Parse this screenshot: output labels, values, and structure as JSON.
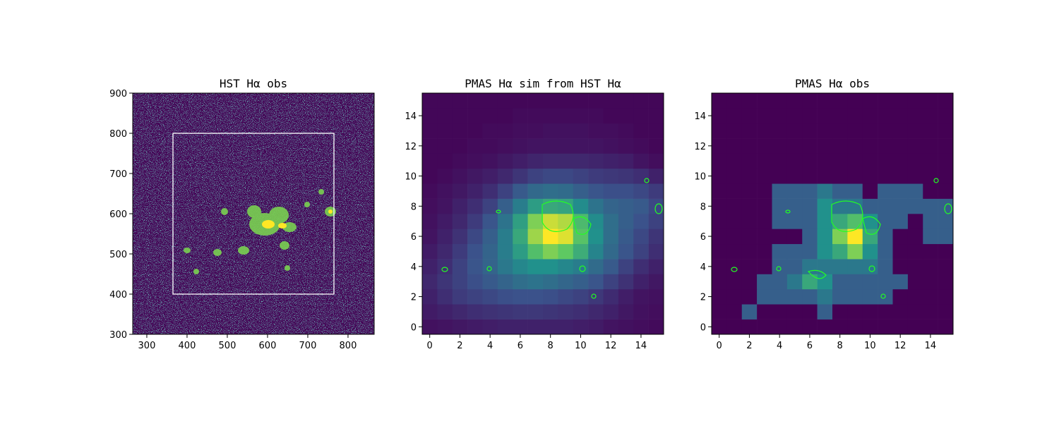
{
  "chart_data": [
    {
      "type": "image",
      "title": "HST Hα obs",
      "colormap": "viridis",
      "xlim": [
        265,
        865
      ],
      "ylim": [
        300,
        900
      ],
      "xticks": [
        300,
        400,
        500,
        600,
        700,
        800
      ],
      "yticks": [
        300,
        400,
        500,
        600,
        700,
        800,
        900
      ],
      "box": {
        "x": [
          365,
          765
        ],
        "y": [
          400,
          800
        ],
        "color": "#ffffff"
      }
    },
    {
      "type": "heatmap",
      "title": "PMAS Hα sim from HST Hα",
      "colormap": "viridis",
      "xlim": [
        -0.5,
        15.5
      ],
      "ylim": [
        -0.5,
        15.5
      ],
      "xticks": [
        0,
        2,
        4,
        6,
        8,
        10,
        12,
        14
      ],
      "yticks": [
        0,
        2,
        4,
        6,
        8,
        10,
        12,
        14
      ],
      "z": [
        [
          0.05,
          0.06,
          0.07,
          0.08,
          0.09,
          0.1,
          0.1,
          0.1,
          0.1,
          0.1,
          0.09,
          0.08,
          0.06,
          0.05,
          0.04,
          0.03
        ],
        [
          0.08,
          0.1,
          0.12,
          0.14,
          0.15,
          0.16,
          0.17,
          0.17,
          0.16,
          0.15,
          0.14,
          0.12,
          0.1,
          0.07,
          0.05,
          0.04
        ],
        [
          0.1,
          0.14,
          0.18,
          0.2,
          0.22,
          0.24,
          0.25,
          0.25,
          0.24,
          0.22,
          0.2,
          0.17,
          0.13,
          0.09,
          0.06,
          0.05
        ],
        [
          0.12,
          0.16,
          0.2,
          0.24,
          0.28,
          0.32,
          0.36,
          0.38,
          0.36,
          0.33,
          0.3,
          0.26,
          0.2,
          0.15,
          0.1,
          0.07
        ],
        [
          0.1,
          0.14,
          0.2,
          0.26,
          0.32,
          0.4,
          0.46,
          0.5,
          0.5,
          0.46,
          0.42,
          0.35,
          0.28,
          0.2,
          0.14,
          0.1
        ],
        [
          0.08,
          0.12,
          0.18,
          0.25,
          0.32,
          0.42,
          0.55,
          0.7,
          0.8,
          0.75,
          0.62,
          0.45,
          0.34,
          0.26,
          0.2,
          0.14
        ],
        [
          0.06,
          0.1,
          0.15,
          0.22,
          0.3,
          0.42,
          0.6,
          0.85,
          1,
          0.95,
          0.72,
          0.5,
          0.36,
          0.28,
          0.22,
          0.16
        ],
        [
          0.05,
          0.08,
          0.12,
          0.18,
          0.26,
          0.38,
          0.56,
          0.8,
          0.92,
          0.88,
          0.68,
          0.48,
          0.36,
          0.3,
          0.25,
          0.2
        ],
        [
          0.04,
          0.06,
          0.1,
          0.14,
          0.2,
          0.3,
          0.42,
          0.55,
          0.6,
          0.58,
          0.48,
          0.38,
          0.32,
          0.3,
          0.28,
          0.22
        ],
        [
          0.03,
          0.05,
          0.07,
          0.1,
          0.14,
          0.2,
          0.28,
          0.34,
          0.36,
          0.35,
          0.3,
          0.26,
          0.24,
          0.24,
          0.22,
          0.18
        ],
        [
          0.02,
          0.03,
          0.05,
          0.07,
          0.09,
          0.12,
          0.16,
          0.2,
          0.22,
          0.22,
          0.2,
          0.18,
          0.17,
          0.16,
          0.14,
          0.1
        ],
        [
          0.02,
          0.02,
          0.03,
          0.04,
          0.05,
          0.07,
          0.09,
          0.11,
          0.12,
          0.12,
          0.12,
          0.11,
          0.1,
          0.09,
          0.06,
          0.04
        ],
        [
          0.02,
          0.02,
          0.02,
          0.03,
          0.03,
          0.04,
          0.05,
          0.06,
          0.06,
          0.06,
          0.06,
          0.06,
          0.05,
          0.04,
          0.03,
          0.02
        ],
        [
          0.02,
          0.02,
          0.02,
          0.02,
          0.03,
          0.03,
          0.04,
          0.04,
          0.05,
          0.05,
          0.05,
          0.04,
          0.04,
          0.03,
          0.02,
          0.02
        ],
        [
          0.02,
          0.02,
          0.02,
          0.02,
          0.02,
          0.02,
          0.03,
          0.03,
          0.03,
          0.03,
          0.03,
          0.03,
          0.02,
          0.02,
          0.02,
          0.02
        ],
        [
          0.02,
          0.02,
          0.02,
          0.02,
          0.02,
          0.02,
          0.02,
          0.02,
          0.02,
          0.02,
          0.02,
          0.02,
          0.02,
          0.02,
          0.02,
          0.02
        ]
      ]
    },
    {
      "type": "heatmap",
      "title": "PMAS Hα obs",
      "colormap": "viridis",
      "xlim": [
        -0.5,
        15.5
      ],
      "ylim": [
        -0.5,
        15.5
      ],
      "xticks": [
        0,
        2,
        4,
        6,
        8,
        10,
        12,
        14
      ],
      "yticks": [
        0,
        2,
        4,
        6,
        8,
        10,
        12,
        14
      ],
      "z": [
        [
          0,
          0,
          0,
          0,
          0,
          0,
          0,
          0,
          0,
          0,
          0,
          0,
          0,
          0,
          0,
          0
        ],
        [
          0,
          0,
          0.3,
          0,
          0,
          0,
          0,
          0.3,
          0,
          0,
          0,
          0,
          0,
          0,
          0,
          0
        ],
        [
          0,
          0,
          0,
          0.3,
          0.3,
          0.3,
          0.3,
          0.4,
          0.3,
          0.3,
          0.3,
          0.3,
          0,
          0,
          0,
          0
        ],
        [
          0,
          0,
          0,
          0.3,
          0.3,
          0.4,
          0.6,
          0.5,
          0.3,
          0.3,
          0.3,
          0.3,
          0.3,
          0,
          0,
          0
        ],
        [
          0,
          0,
          0,
          0,
          0.3,
          0.3,
          0.4,
          0.4,
          0.4,
          0.4,
          0.4,
          0.3,
          0,
          0,
          0,
          0
        ],
        [
          0,
          0,
          0,
          0,
          0.3,
          0.3,
          0.3,
          0.5,
          0.6,
          0.8,
          0.5,
          0.3,
          0,
          0,
          0,
          0
        ],
        [
          0,
          0,
          0,
          0,
          0,
          0,
          0.3,
          0.5,
          0.8,
          1,
          0.6,
          0.3,
          0,
          0,
          0.3,
          0.3
        ],
        [
          0,
          0,
          0,
          0,
          0.3,
          0.3,
          0.3,
          0.5,
          0.6,
          0.7,
          0.5,
          0.3,
          0.3,
          0,
          0.3,
          0.3
        ],
        [
          0,
          0,
          0,
          0,
          0.3,
          0.3,
          0.3,
          0.5,
          0.4,
          0.4,
          0.3,
          0.3,
          0.3,
          0.3,
          0.3,
          0.3
        ],
        [
          0,
          0,
          0,
          0,
          0.3,
          0.3,
          0.3,
          0.4,
          0.3,
          0.3,
          0,
          0.3,
          0.3,
          0.3,
          0,
          0
        ],
        [
          0,
          0,
          0,
          0,
          0,
          0,
          0,
          0,
          0,
          0,
          0,
          0,
          0,
          0,
          0,
          0
        ],
        [
          0,
          0,
          0,
          0,
          0,
          0,
          0,
          0,
          0,
          0,
          0,
          0,
          0,
          0,
          0,
          0
        ],
        [
          0,
          0,
          0,
          0,
          0,
          0,
          0,
          0,
          0,
          0,
          0,
          0,
          0,
          0,
          0,
          0
        ],
        [
          0,
          0,
          0,
          0,
          0,
          0,
          0,
          0,
          0,
          0,
          0,
          0,
          0,
          0,
          0,
          0
        ],
        [
          0,
          0,
          0,
          0,
          0,
          0,
          0,
          0,
          0,
          0,
          0,
          0,
          0,
          0,
          0,
          0
        ],
        [
          0,
          0,
          0,
          0,
          0,
          0,
          0,
          0,
          0,
          0,
          0,
          0,
          0,
          0,
          0,
          0
        ]
      ]
    }
  ]
}
